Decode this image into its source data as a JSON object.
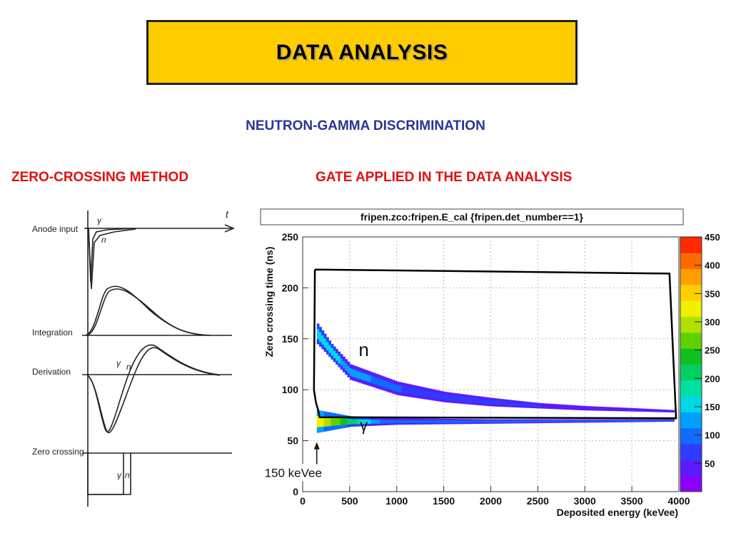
{
  "slide": {
    "title": "DATA ANALYSIS",
    "subtitle": "NEUTRON-GAMMA DISCRIMINATION",
    "left_heading": "ZERO-CROSSING METHOD",
    "right_heading": "GATE APPLIED IN THE DATA ANALYSIS"
  },
  "zc_diagram": {
    "labels": [
      "Anode input",
      "Integration",
      "Derivation",
      "Zero crossing"
    ],
    "time_label": "t",
    "gamma_symbol": "γ",
    "neutron_symbol": "n"
  },
  "chart_data": {
    "type": "heatmap",
    "title": "fripen.zco:fripen.E_cal {fripen.det_number==1}",
    "xlabel": "Deposited energy (keVee)",
    "ylabel": "Zero crossing time (ns)",
    "xlim": [
      0,
      4000
    ],
    "ylim": [
      0,
      250
    ],
    "x_ticks": [
      0,
      500,
      1000,
      1500,
      2000,
      2500,
      3000,
      3500,
      4000
    ],
    "y_ticks": [
      0,
      50,
      100,
      150,
      200,
      250
    ],
    "grid": true,
    "colorbar": {
      "ticks": [
        50,
        100,
        150,
        200,
        250,
        300,
        350,
        400,
        450
      ],
      "max": 450,
      "colors": [
        "#8a00ff",
        "#5a1cff",
        "#2f3cff",
        "#0f6cff",
        "#00a0ff",
        "#00d8e8",
        "#00e0a0",
        "#00d060",
        "#10c020",
        "#60d000",
        "#b0e000",
        "#f0f000",
        "#ffd000",
        "#ffa000",
        "#ff6a00",
        "#ff2a00"
      ]
    },
    "annotations": [
      {
        "text": "n",
        "x": 650,
        "y": 133
      },
      {
        "text": "γ",
        "x": 650,
        "y": 60
      },
      {
        "text": "150 keVee",
        "x": 150,
        "y": 13
      }
    ],
    "gate_polygon": [
      [
        130,
        218
      ],
      [
        3900,
        214
      ],
      [
        3970,
        72
      ],
      [
        180,
        73
      ],
      [
        170,
        78
      ],
      [
        140,
        88
      ],
      [
        120,
        100
      ],
      [
        130,
        218
      ]
    ],
    "bands": [
      {
        "name": "n",
        "min_time": [
          [
            150,
            145
          ],
          [
            500,
            110
          ],
          [
            1000,
            95
          ],
          [
            1500,
            88
          ],
          [
            2000,
            84
          ],
          [
            2500,
            82
          ],
          [
            3000,
            80
          ],
          [
            3500,
            79
          ],
          [
            3950,
            78
          ]
        ],
        "max_time": [
          [
            150,
            165
          ],
          [
            300,
            145
          ],
          [
            500,
            125
          ],
          [
            1000,
            108
          ],
          [
            1500,
            98
          ],
          [
            2000,
            92
          ],
          [
            2500,
            87
          ],
          [
            3000,
            84
          ],
          [
            3500,
            82
          ],
          [
            3950,
            80
          ]
        ]
      },
      {
        "name": "γ",
        "min_time": [
          [
            150,
            58
          ],
          [
            500,
            64
          ],
          [
            1000,
            66
          ],
          [
            2000,
            67
          ],
          [
            3000,
            68
          ],
          [
            3950,
            69
          ]
        ],
        "max_time": [
          [
            150,
            80
          ],
          [
            500,
            74
          ],
          [
            1000,
            72
          ],
          [
            2000,
            71
          ],
          [
            3000,
            71
          ],
          [
            3950,
            71
          ]
        ]
      }
    ]
  }
}
